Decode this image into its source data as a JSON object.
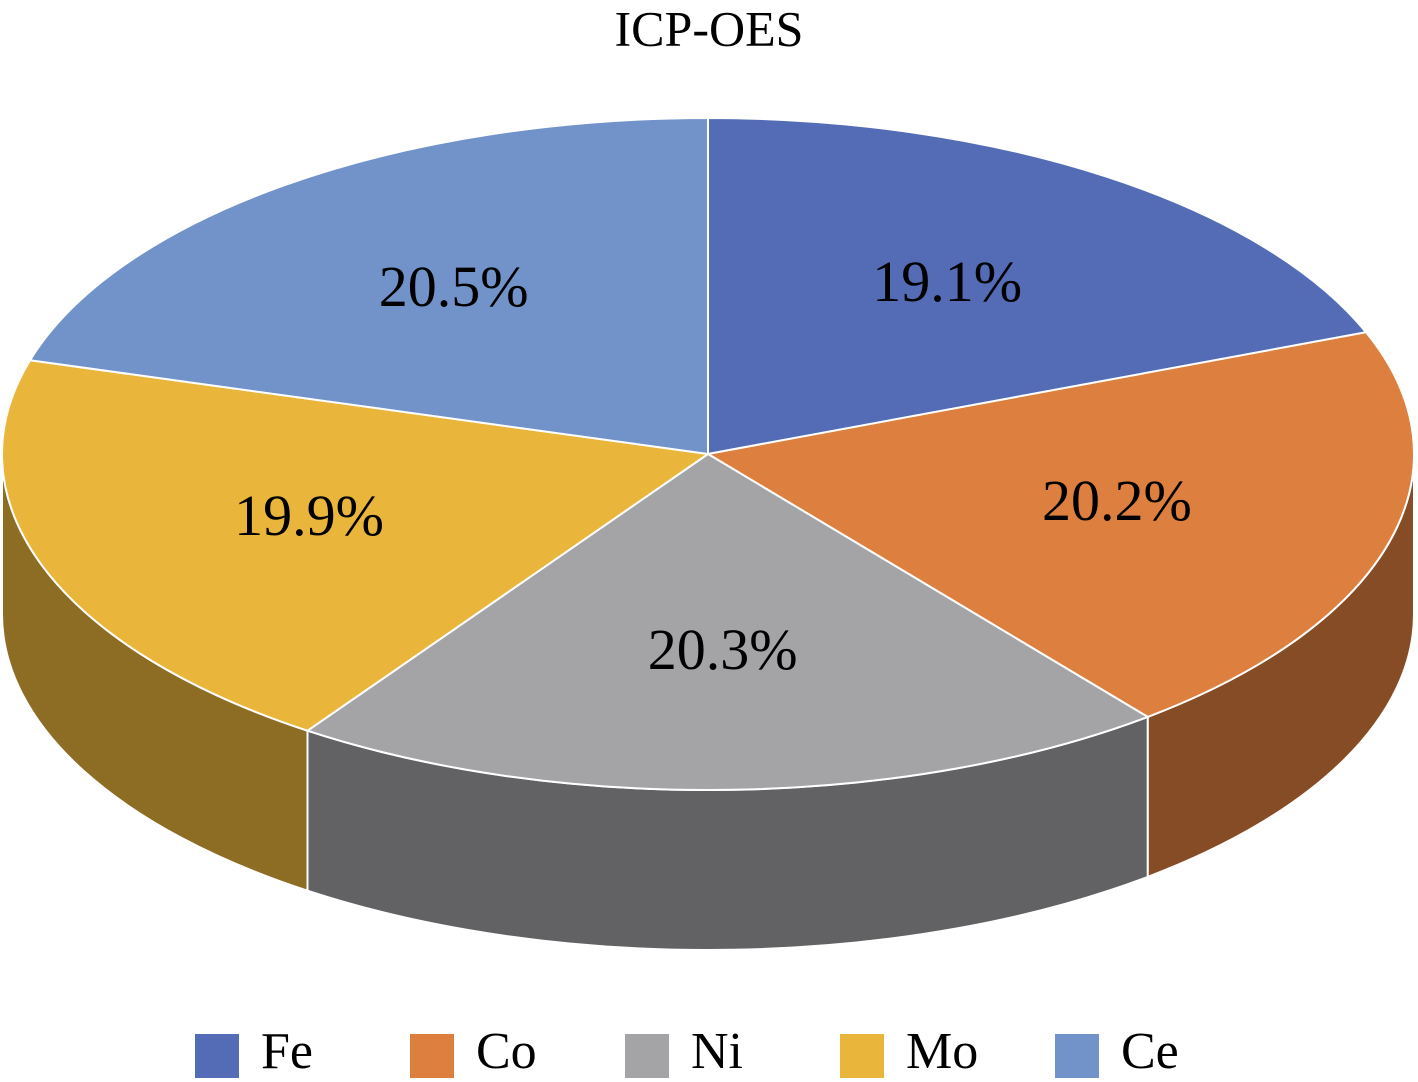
{
  "chart_data": {
    "type": "pie",
    "title": "ICP-OES",
    "categories": [
      "Fe",
      "Co",
      "Ni",
      "Mo",
      "Ce"
    ],
    "values": [
      19.1,
      20.2,
      20.3,
      19.9,
      20.5
    ],
    "value_labels": [
      "19.1%",
      "20.2%",
      "20.3%",
      "19.9%",
      "20.5%"
    ],
    "colors": [
      "#536cb5",
      "#dd7f3e",
      "#a4a3a6",
      "#e9b63b",
      "#7193c9"
    ],
    "legend": "bottom"
  }
}
